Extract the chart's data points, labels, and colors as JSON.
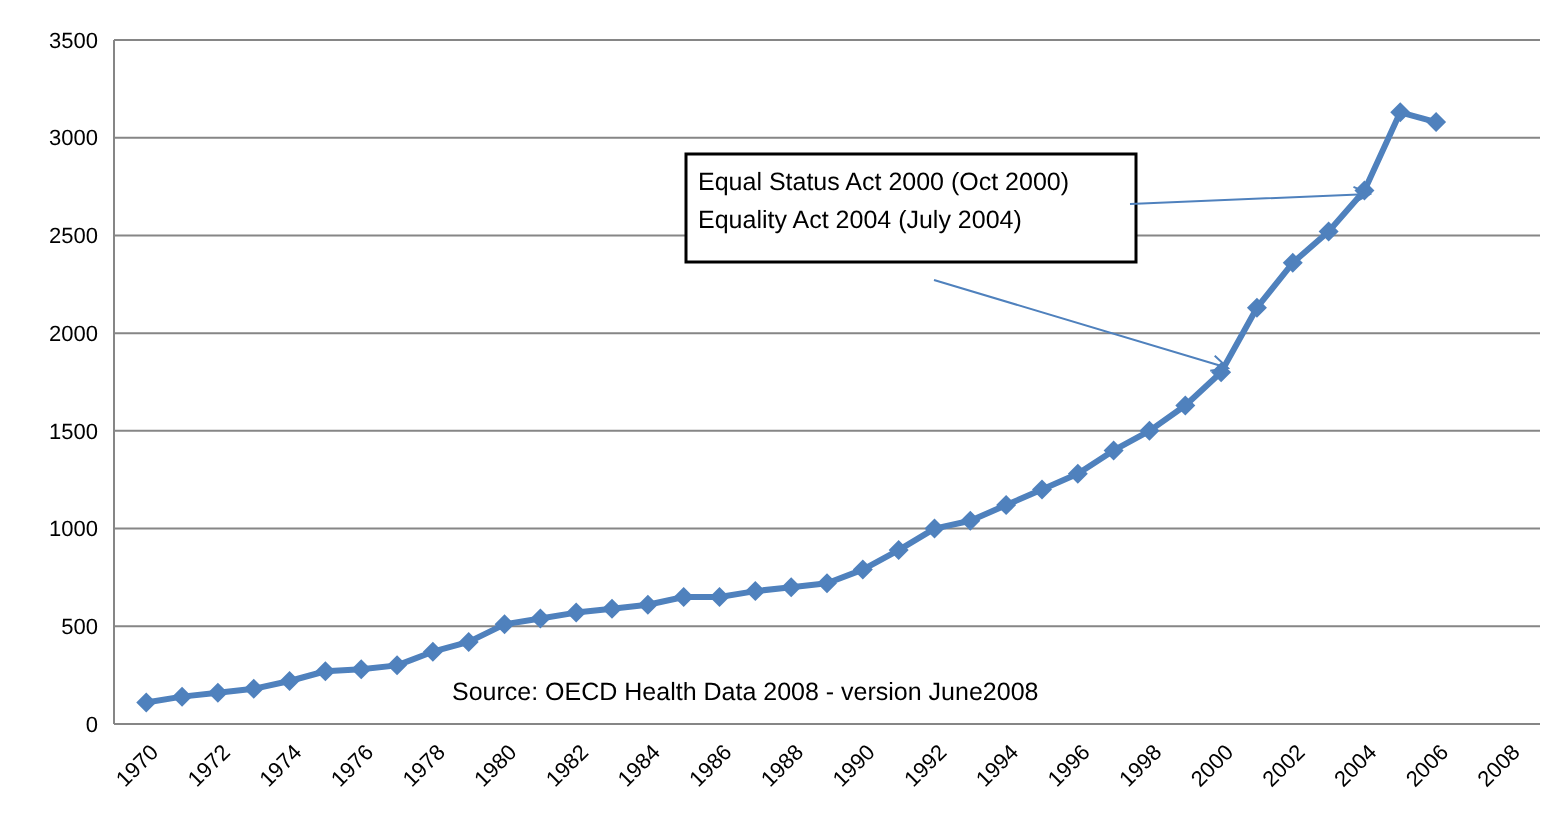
{
  "chart_data": {
    "type": "line",
    "x": [
      1970,
      1971,
      1972,
      1973,
      1974,
      1975,
      1976,
      1977,
      1978,
      1979,
      1980,
      1981,
      1982,
      1983,
      1984,
      1985,
      1986,
      1987,
      1988,
      1989,
      1990,
      1991,
      1992,
      1993,
      1994,
      1995,
      1996,
      1997,
      1998,
      1999,
      2000,
      2001,
      2002,
      2003,
      2004,
      2005,
      2006
    ],
    "series": [
      {
        "color": "#4f81bd",
        "values": [
          110,
          140,
          160,
          180,
          220,
          270,
          280,
          300,
          370,
          420,
          510,
          540,
          570,
          590,
          610,
          650,
          650,
          680,
          700,
          720,
          790,
          890,
          1000,
          1040,
          1120,
          1200,
          1280,
          1400,
          1500,
          1630,
          1800,
          2130,
          2360,
          2520,
          2730,
          3130,
          3080
        ]
      }
    ],
    "xlim": [
      1969.1,
      2008.9
    ],
    "xticks": [
      1970,
      1972,
      1974,
      1976,
      1978,
      1980,
      1982,
      1984,
      1986,
      1988,
      1990,
      1992,
      1994,
      1996,
      1998,
      2000,
      2002,
      2004,
      2006,
      2008
    ],
    "ylim": [
      0,
      3500
    ],
    "yticks": [
      0,
      500,
      1000,
      1500,
      2000,
      2500,
      3000,
      3500
    ],
    "grid": "y",
    "marker": "diamond",
    "line_style": "solid",
    "annotations": [
      "Equal Status Act 2000 (Oct 2000)",
      "Equality Act 2004 (July 2004)",
      "Source: OECD Health Data 2008 - version June2008"
    ]
  }
}
